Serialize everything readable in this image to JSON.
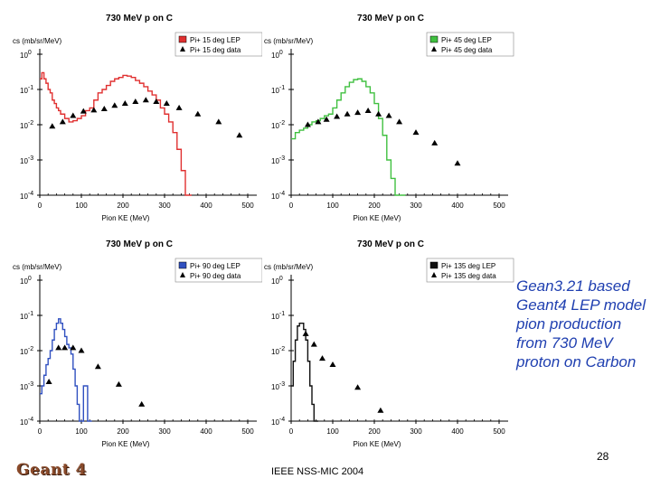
{
  "slide": {
    "side_text": "Gean3.21 based Geant4 LEP model pion production from 730 MeV proton on Carbon",
    "page_number": "28",
    "conference": "IEEE NSS-MIC 2004",
    "logo_text": "Geant 4"
  },
  "chart_data": [
    {
      "type": "line",
      "title": "730 MeV p on C",
      "ylabel": "cs (mb/sr/MeV)",
      "xlabel": "Pion KE (MeV)",
      "xlim": [
        0,
        500
      ],
      "ylim": [
        0.0001,
        1
      ],
      "yscale": "log",
      "xticks": [
        "0",
        "100",
        "200",
        "300",
        "400",
        "500"
      ],
      "yticks": [
        {
          "base": "10",
          "exp": "0"
        },
        {
          "base": "10",
          "exp": "-1"
        },
        {
          "base": "10",
          "exp": "-2"
        },
        {
          "base": "10",
          "exp": "-3"
        },
        {
          "base": "10",
          "exp": "-4"
        }
      ],
      "legend_position": "top-right",
      "series": [
        {
          "name": "Pi+ 15 deg LEP",
          "color": "#e03030",
          "style": "step",
          "x": [
            0,
            5,
            10,
            15,
            20,
            25,
            30,
            35,
            40,
            45,
            50,
            60,
            70,
            80,
            90,
            100,
            110,
            120,
            130,
            140,
            150,
            160,
            170,
            180,
            190,
            200,
            210,
            220,
            230,
            240,
            250,
            260,
            270,
            280,
            290,
            300,
            310,
            320,
            330,
            340,
            350,
            360
          ],
          "y": [
            0.2,
            0.3,
            0.2,
            0.15,
            0.1,
            0.08,
            0.05,
            0.04,
            0.03,
            0.025,
            0.02,
            0.015,
            0.012,
            0.013,
            0.015,
            0.018,
            0.025,
            0.03,
            0.05,
            0.08,
            0.1,
            0.13,
            0.17,
            0.2,
            0.22,
            0.25,
            0.24,
            0.22,
            0.18,
            0.15,
            0.12,
            0.09,
            0.07,
            0.05,
            0.03,
            0.02,
            0.012,
            0.006,
            0.002,
            0.0005,
            0.0001,
            0.0001
          ]
        },
        {
          "name": "Pi+ 15 deg data",
          "color": "#000000",
          "style": "markers",
          "x": [
            30,
            55,
            80,
            105,
            130,
            155,
            180,
            205,
            230,
            255,
            280,
            305,
            335,
            380,
            430,
            480
          ],
          "y": [
            0.009,
            0.012,
            0.018,
            0.024,
            0.026,
            0.028,
            0.035,
            0.04,
            0.045,
            0.05,
            0.045,
            0.04,
            0.03,
            0.02,
            0.012,
            0.005
          ]
        }
      ]
    },
    {
      "type": "line",
      "title": "730 MeV p on C",
      "ylabel": "cs (mb/sr/MeV)",
      "xlabel": "Pion KE (MeV)",
      "xlim": [
        0,
        500
      ],
      "ylim": [
        0.0001,
        1
      ],
      "yscale": "log",
      "xticks": [
        "0",
        "100",
        "200",
        "300",
        "400",
        "500"
      ],
      "yticks": [
        {
          "base": "10",
          "exp": "0"
        },
        {
          "base": "10",
          "exp": "-1"
        },
        {
          "base": "10",
          "exp": "-2"
        },
        {
          "base": "10",
          "exp": "-3"
        },
        {
          "base": "10",
          "exp": "-4"
        }
      ],
      "legend_position": "top-right",
      "series": [
        {
          "name": "Pi+ 45 deg LEP",
          "color": "#40c040",
          "style": "step",
          "x": [
            0,
            10,
            20,
            30,
            40,
            50,
            60,
            70,
            80,
            90,
            100,
            110,
            120,
            130,
            140,
            150,
            160,
            170,
            180,
            190,
            200,
            210,
            220,
            230,
            240,
            250,
            260,
            270
          ],
          "y": [
            0.004,
            0.006,
            0.007,
            0.008,
            0.01,
            0.012,
            0.013,
            0.015,
            0.018,
            0.02,
            0.03,
            0.05,
            0.08,
            0.12,
            0.16,
            0.19,
            0.2,
            0.17,
            0.12,
            0.08,
            0.04,
            0.015,
            0.005,
            0.001,
            0.0003,
            0.0001,
            0.0001,
            0.0001
          ]
        },
        {
          "name": "Pi+ 45 deg data",
          "color": "#000000",
          "style": "markers",
          "x": [
            40,
            65,
            85,
            110,
            135,
            160,
            185,
            210,
            235,
            260,
            300,
            345,
            400
          ],
          "y": [
            0.01,
            0.012,
            0.014,
            0.017,
            0.02,
            0.022,
            0.025,
            0.02,
            0.018,
            0.012,
            0.006,
            0.003,
            0.0008
          ]
        }
      ]
    },
    {
      "type": "line",
      "title": "730 MeV p on C",
      "ylabel": "cs (mb/sr/MeV)",
      "xlabel": "Pion KE (MeV)",
      "xlim": [
        0,
        500
      ],
      "ylim": [
        0.0001,
        1
      ],
      "yscale": "log",
      "xticks": [
        "0",
        "100",
        "200",
        "300",
        "400",
        "500"
      ],
      "yticks": [
        {
          "base": "10",
          "exp": "0"
        },
        {
          "base": "10",
          "exp": "-1"
        },
        {
          "base": "10",
          "exp": "-2"
        },
        {
          "base": "10",
          "exp": "-3"
        },
        {
          "base": "10",
          "exp": "-4"
        }
      ],
      "legend_position": "top-right",
      "series": [
        {
          "name": "Pi+ 90 deg LEP",
          "color": "#3050c0",
          "style": "step",
          "x": [
            0,
            5,
            10,
            15,
            20,
            25,
            30,
            35,
            40,
            45,
            50,
            55,
            60,
            65,
            70,
            75,
            80,
            85,
            90,
            95,
            100,
            105,
            110,
            115,
            120
          ],
          "y": [
            0.0006,
            0.001,
            0.002,
            0.004,
            0.006,
            0.01,
            0.02,
            0.04,
            0.06,
            0.08,
            0.06,
            0.04,
            0.025,
            0.015,
            0.012,
            0.008,
            0.003,
            0.001,
            0.0003,
            0.0001,
            0.0001,
            0.001,
            0.001,
            0.0001,
            0.0001
          ]
        },
        {
          "name": "Pi+ 90 deg data",
          "color": "#000000",
          "style": "markers",
          "x": [
            22,
            45,
            60,
            80,
            100,
            140,
            190,
            245
          ],
          "y": [
            0.0013,
            0.012,
            0.012,
            0.012,
            0.01,
            0.0035,
            0.0011,
            0.0003
          ]
        }
      ]
    },
    {
      "type": "line",
      "title": "730 MeV p on C",
      "ylabel": "cs (mb/sr/MeV)",
      "xlabel": "Pion KE (MeV)",
      "xlim": [
        0,
        500
      ],
      "ylim": [
        0.0001,
        1
      ],
      "yscale": "log",
      "xticks": [
        "0",
        "100",
        "200",
        "300",
        "400",
        "500"
      ],
      "yticks": [
        {
          "base": "10",
          "exp": "0"
        },
        {
          "base": "10",
          "exp": "-1"
        },
        {
          "base": "10",
          "exp": "-2"
        },
        {
          "base": "10",
          "exp": "-3"
        },
        {
          "base": "10",
          "exp": "-4"
        }
      ],
      "legend_position": "top-right",
      "series": [
        {
          "name": "Pi+ 135 deg LEP",
          "color": "#101010",
          "style": "step",
          "x": [
            0,
            5,
            10,
            15,
            20,
            25,
            30,
            35,
            40,
            45,
            50,
            55,
            60
          ],
          "y": [
            0.001,
            0.005,
            0.02,
            0.05,
            0.06,
            0.06,
            0.04,
            0.02,
            0.005,
            0.001,
            0.0003,
            0.0001,
            0.0001
          ]
        },
        {
          "name": "Pi+ 135 deg data",
          "color": "#000000",
          "style": "markers",
          "x": [
            35,
            55,
            75,
            100,
            160,
            215
          ],
          "y": [
            0.03,
            0.015,
            0.006,
            0.004,
            0.0009,
            0.0002
          ]
        }
      ]
    }
  ]
}
